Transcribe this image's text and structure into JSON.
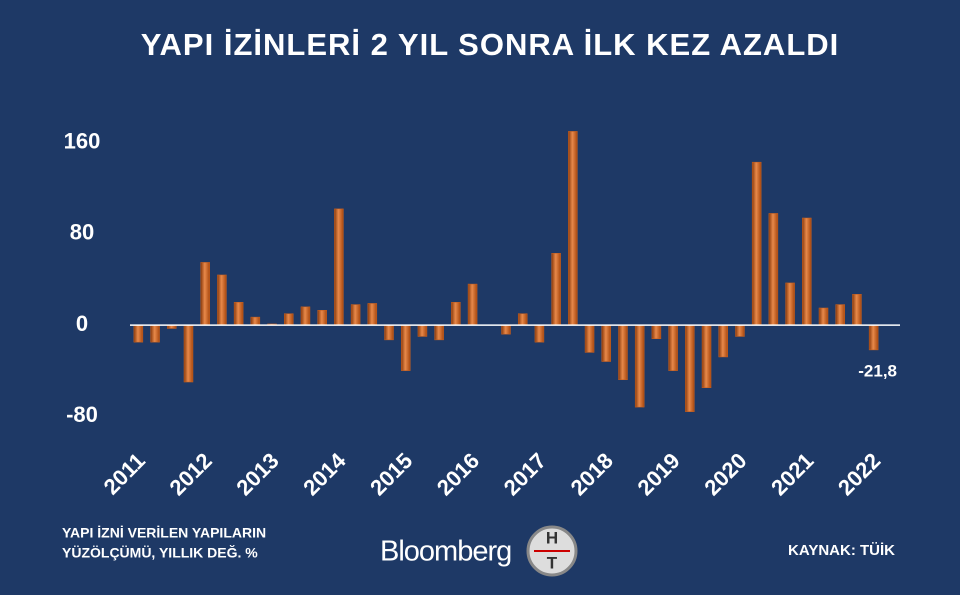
{
  "chart_data": {
    "type": "bar",
    "title": "YAPI İZİNLERİ 2 YIL SONRA İLK KEZ AZALDI",
    "categories": [
      "2011",
      null,
      null,
      null,
      "2012",
      null,
      null,
      null,
      "2013",
      null,
      null,
      null,
      "2014",
      null,
      null,
      null,
      "2015",
      null,
      null,
      null,
      "2016",
      null,
      null,
      null,
      "2017",
      null,
      null,
      null,
      "2018",
      null,
      null,
      null,
      "2019",
      null,
      null,
      null,
      "2020",
      null,
      null,
      null,
      "2021",
      null,
      null,
      null,
      "2022"
    ],
    "values": [
      -15,
      -15,
      -3,
      -50,
      55,
      44,
      20,
      7,
      1,
      10,
      16,
      13,
      102,
      18,
      19,
      -13,
      -40,
      -10,
      -13,
      20,
      36,
      0,
      -8,
      10,
      -15,
      63,
      170,
      -24,
      -32,
      -48,
      -72,
      -12,
      -40,
      -76,
      -55,
      -28,
      -10,
      143,
      98,
      37,
      94,
      15,
      18,
      27,
      -21.8
    ],
    "value_labels": [
      null,
      null,
      null,
      null,
      null,
      null,
      null,
      null,
      null,
      null,
      null,
      null,
      null,
      null,
      null,
      null,
      null,
      null,
      null,
      null,
      null,
      null,
      null,
      null,
      null,
      null,
      null,
      null,
      null,
      null,
      null,
      null,
      null,
      null,
      null,
      null,
      null,
      null,
      null,
      null,
      null,
      null,
      null,
      null,
      "-21,8"
    ],
    "color": "#c8601f",
    "ylim": [
      -100,
      180
    ],
    "yticks": [
      -80,
      0,
      80,
      160
    ],
    "grid": false
  },
  "footer": {
    "note": [
      "YAPI İZNİ VERİLEN YAPILARIN",
      "YÜZÖLÇÜMÜ, YILLIK DEĞ. %"
    ],
    "brand": "Bloomberg",
    "logo": [
      "H",
      "T"
    ],
    "source": "KAYNAK: TÜİK"
  }
}
